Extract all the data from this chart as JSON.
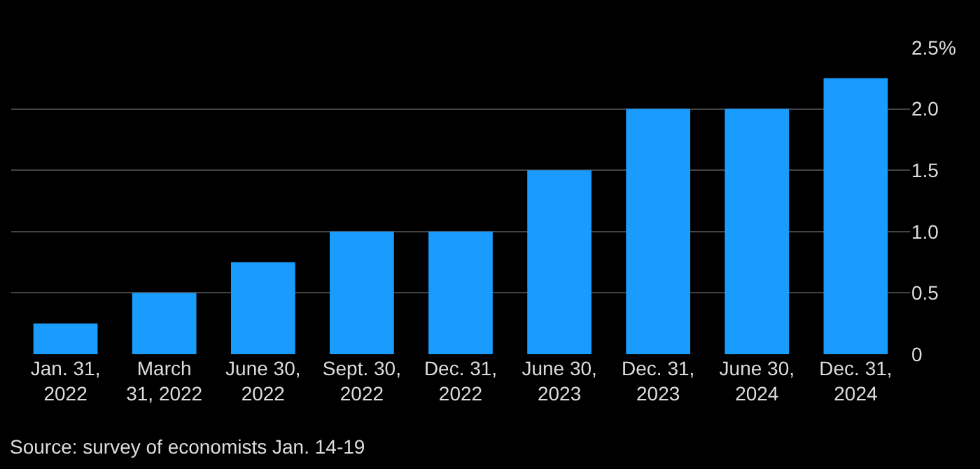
{
  "chart_data": {
    "type": "bar",
    "categories": [
      "Jan. 31,\n2022",
      "March\n31, 2022",
      "June 30,\n2022",
      "Sept. 30,\n2022",
      "Dec. 31,\n2022",
      "June 30,\n2023",
      "Dec. 31,\n2023",
      "June 30,\n2024",
      "Dec. 31,\n2024"
    ],
    "values": [
      0.25,
      0.5,
      0.75,
      1.0,
      1.0,
      1.5,
      2.0,
      2.0,
      2.25
    ],
    "color": "#1a9cff",
    "ylim": [
      0,
      2.5
    ],
    "yticks": [
      0,
      0.5,
      {
        "value": 1,
        "label": "1.0"
      },
      1.5,
      {
        "value": 2,
        "label": "2.0"
      },
      {
        "value": 2.5,
        "label": "2.5%"
      }
    ],
    "grid": "y",
    "annotations": [
      "Source: survey of economists Jan. 14-19"
    ]
  }
}
